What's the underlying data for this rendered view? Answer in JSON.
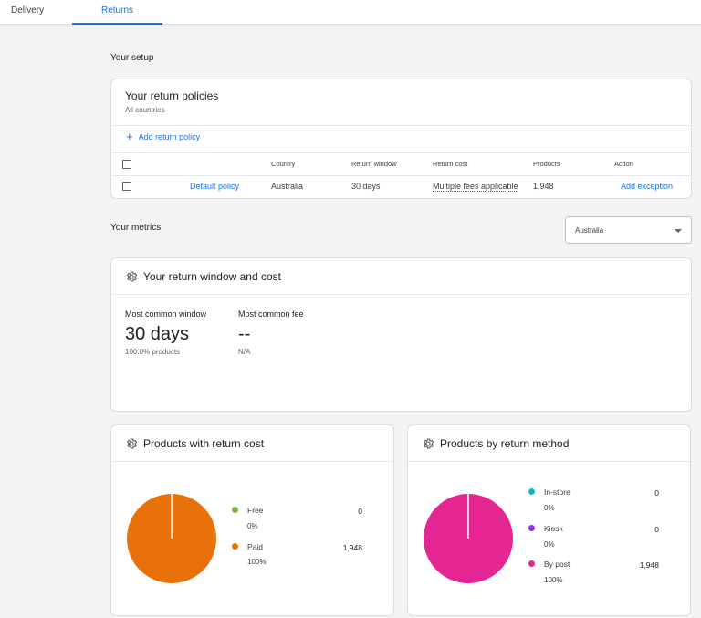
{
  "tabs": [
    {
      "label": "Delivery"
    },
    {
      "label": "Returns"
    }
  ],
  "setup": {
    "title": "Your setup",
    "policies": {
      "title": "Your return policies",
      "subtitle": "All countries",
      "add_label": "Add return policy",
      "columns": [
        "Country",
        "Return window",
        "Return cost",
        "Products",
        "Action"
      ],
      "rows": [
        {
          "name": "Default policy",
          "country": "Australia",
          "window": "30 days",
          "cost": "Multiple fees applicable",
          "products": "1,948",
          "action": "Add exception"
        }
      ]
    }
  },
  "metrics": {
    "title": "Your metrics",
    "country_select": "Australia",
    "window_cost": {
      "title": "Your return window and cost",
      "common_window_label": "Most common window",
      "common_window_value": "30 days",
      "common_window_sub": "100.0% products",
      "common_fee_label": "Most common fee",
      "common_fee_value": "--",
      "common_fee_sub": "N/A"
    },
    "return_cost": {
      "title": "Products with return cost",
      "items": [
        {
          "label": "Free",
          "pct": "0%",
          "value": "0",
          "color": "#7cb342"
        },
        {
          "label": "Paid",
          "pct": "100%",
          "value": "1,948",
          "color": "#e8710a"
        }
      ]
    },
    "return_method": {
      "title": "Products by return method",
      "items": [
        {
          "label": "In-store",
          "pct": "0%",
          "value": "0",
          "color": "#12b5cb"
        },
        {
          "label": "Kiosk",
          "pct": "0%",
          "value": "0",
          "color": "#9334e6"
        },
        {
          "label": "By post",
          "pct": "100%",
          "value": "1,948",
          "color": "#e52592"
        }
      ]
    }
  }
}
